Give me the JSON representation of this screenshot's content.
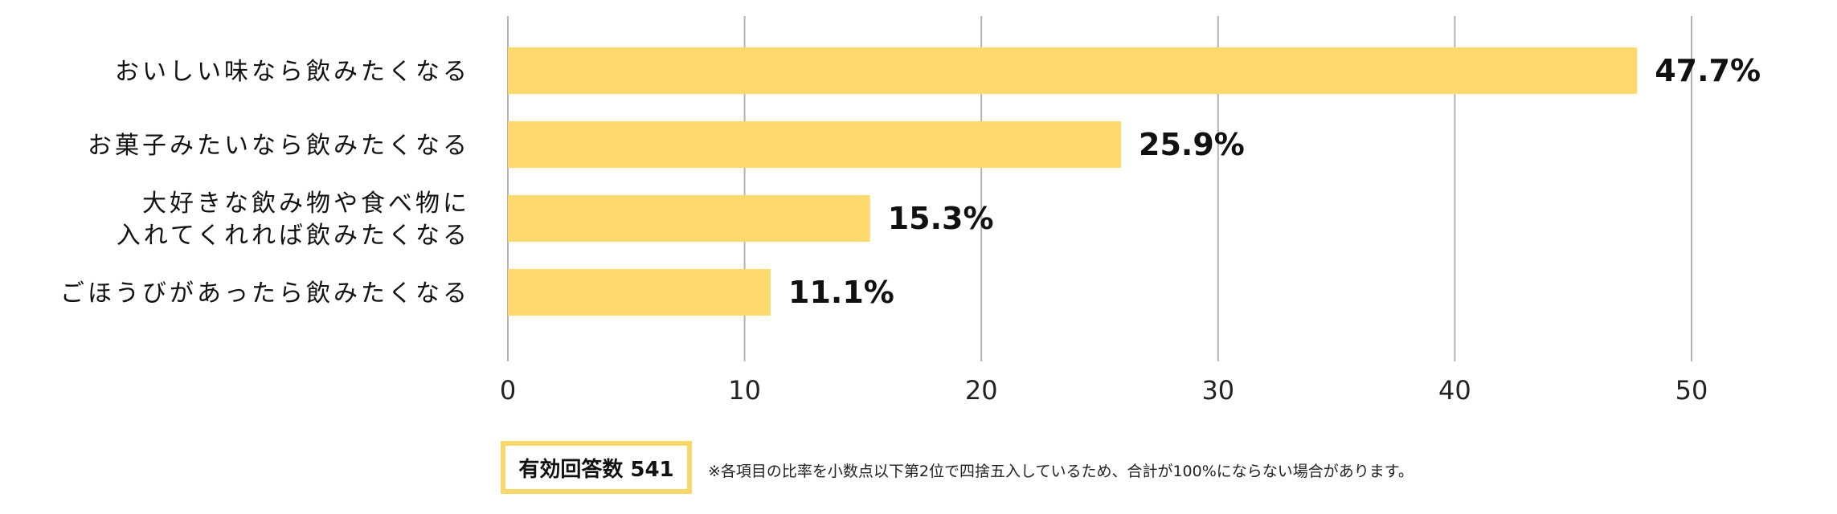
{
  "chart_data": {
    "type": "bar",
    "orientation": "horizontal",
    "categories": [
      [
        "おいしい味なら飲みたくなる"
      ],
      [
        "お菓子みたいなら飲みたくなる"
      ],
      [
        "大好きな飲み物や食べ物に",
        "入れてくれれば飲みたくなる"
      ],
      [
        "ごほうびがあったら飲みたくなる"
      ]
    ],
    "values": [
      47.7,
      25.9,
      15.3,
      11.1
    ],
    "value_labels": [
      "47.7%",
      "25.9%",
      "15.3%",
      "11.1%"
    ],
    "xlim": [
      0,
      50
    ],
    "xticks": [
      0,
      10,
      20,
      30,
      40,
      50
    ],
    "xtick_labels": [
      "0",
      "10",
      "20",
      "30",
      "40",
      "50"
    ],
    "grid": true,
    "bar_color": "#fdd96e",
    "grid_color": "#b3b3b3"
  },
  "respondents_label": "有効回答数 541",
  "footnote": "※各項目の比率を小数点以下第2位で四捨五入しているため、合計が100%にならない場合があります。"
}
